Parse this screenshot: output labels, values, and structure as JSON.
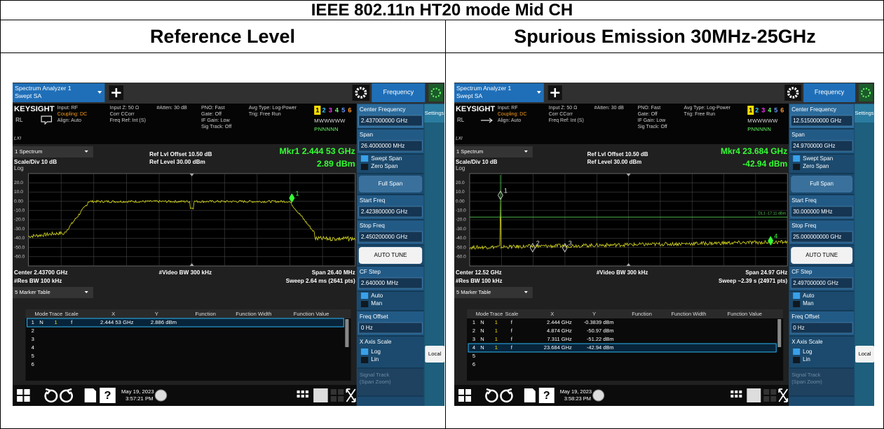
{
  "title": "IEEE 802.11n HT20 mode Mid CH",
  "panels": [
    {
      "heading": "Reference Level",
      "screen": {
        "tab": [
          "Spectrum Analyzer 1",
          "Swept SA"
        ],
        "menu": "Frequency",
        "brand": "KEYSIGHT",
        "rl": "RL",
        "lxi": "LXI",
        "info": [
          [
            "Input: RF",
            "Coupling: DC",
            "Align: Auto"
          ],
          [
            "Input Z: 50 Ω",
            "Corr CCorr",
            "Freq Ref: Int (S)"
          ],
          [
            "#Atten: 30 dB"
          ],
          [
            "PNO: Fast",
            "Gate: Off",
            "IF Gain: Low",
            "Sig Track: Off"
          ],
          [
            "Avg Type: Log-Power",
            "Trig: Free Run"
          ]
        ],
        "traces": [
          "1",
          "2",
          "3",
          "4",
          "5",
          "6"
        ],
        "trace_modes": "MWWWWW",
        "trace_dets": "PNNNNN",
        "window": "1 Spectrum",
        "scale": "Scale/Div 10 dB",
        "log": "Log",
        "ref_offset": "Ref Lvl Offset 10.50 dB",
        "ref_level": "Ref Level 30.00 dBm",
        "marker_freq": "Mkr1  2.444 53 GHz",
        "marker_level": "2.89 dBm",
        "y_labels": [
          "20.0",
          "10.0",
          "0.00",
          "-10.0",
          "-20.0",
          "-30.0",
          "-40.0",
          "-50.0",
          "-60.0"
        ],
        "markers": [
          "1"
        ],
        "center": "Center 2.43700 GHz",
        "res_bw": "#Res BW 100 kHz",
        "video_bw": "#Video BW 300 kHz",
        "span": "Span 26.40 MHz",
        "sweep": "Sweep 2.64 ms (2641 pts)",
        "table_title": "5 Marker Table",
        "columns": [
          "Mode",
          "Trace",
          "Scale",
          "X",
          "Y",
          "Function",
          "Function Width",
          "Function Value"
        ],
        "rows": [
          {
            "n": "1",
            "mode": "N",
            "trace": "1",
            "scale": "f",
            "x": "2.444 53 GHz",
            "y": "2.886 dBm",
            "selected": true
          },
          {
            "n": "2"
          },
          {
            "n": "3"
          },
          {
            "n": "4"
          },
          {
            "n": "5"
          },
          {
            "n": "6"
          }
        ],
        "side": [
          {
            "label": "Center Frequency",
            "value": "2.437000000 GHz"
          },
          {
            "label": "Span",
            "value": "26.4000000 MHz"
          },
          {
            "options": [
              "Swept Span",
              "Zero Span"
            ]
          },
          {
            "button": "Full Span"
          },
          {
            "label": "Start Freq",
            "value": "2.423800000 GHz"
          },
          {
            "label": "Stop Freq",
            "value": "2.450200000 GHz"
          },
          {
            "button": "AUTO TUNE"
          },
          {
            "label": "CF Step",
            "value": "2.640000 MHz"
          },
          {
            "options": [
              "Auto",
              "Man"
            ]
          },
          {
            "label": "Freq Offset",
            "value": "0 Hz"
          },
          {
            "label": "X Axis Scale",
            "options": [
              "Log",
              "Lin"
            ]
          },
          {
            "disabled": [
              "Signal Track",
              "(Span Zoom)"
            ]
          }
        ],
        "settings": "Settings",
        "local": "Local",
        "help": "?",
        "date": "May 19, 2023",
        "time": "3:57:21 PM"
      }
    },
    {
      "heading": "Spurious Emission 30MHz-25GHz",
      "screen": {
        "tab": [
          "Spectrum Analyzer 1",
          "Swept SA"
        ],
        "menu": "Frequency",
        "brand": "KEYSIGHT",
        "rl": "RL",
        "lxi": "LXI",
        "info": [
          [
            "Input: RF",
            "Coupling: DC",
            "Align: Auto"
          ],
          [
            "Input Z: 50 Ω",
            "Corr CCorr",
            "Freq Ref: Int (S)"
          ],
          [
            "#Atten: 30 dB"
          ],
          [
            "PNO: Fast",
            "Gate: Off",
            "IF Gain: Low",
            "Sig Track: Off"
          ],
          [
            "Avg Type: Log-Power",
            "Trig: Free Run"
          ]
        ],
        "traces": [
          "1",
          "2",
          "3",
          "4",
          "5",
          "6"
        ],
        "trace_modes": "MWWWWW",
        "trace_dets": "PNNNNN",
        "window": "1 Spectrum",
        "scale": "Scale/Div 10 dB",
        "log": "Log",
        "ref_offset": "Ref Lvl Offset 10.50 dB",
        "ref_level": "Ref Level 30.00 dBm",
        "marker_freq": "Mkr4  23.684 GHz",
        "marker_level": "-42.94 dBm",
        "y_labels": [
          "20.0",
          "10.0",
          "0.00",
          "-10.0",
          "-20.0",
          "-30.0",
          "-40.0",
          "-50.0",
          "-60.0"
        ],
        "markers": [
          "1",
          "2",
          "3",
          "4"
        ],
        "display_line": "DL1 -17.11 dBm",
        "center": "Center 12.52 GHz",
        "res_bw": "#Res BW 100 kHz",
        "video_bw": "#Video BW 300 kHz",
        "span": "Span 24.97 GHz",
        "sweep": "Sweep ~2.39 s (24971 pts)",
        "table_title": "5 Marker Table",
        "columns": [
          "Mode",
          "Trace",
          "Scale",
          "X",
          "Y",
          "Function",
          "Function Width",
          "Function Value"
        ],
        "rows": [
          {
            "n": "1",
            "mode": "N",
            "trace": "1",
            "scale": "f",
            "x": "2.444 GHz",
            "y": "-0.3839 dBm"
          },
          {
            "n": "2",
            "mode": "N",
            "trace": "1",
            "scale": "f",
            "x": "4.874 GHz",
            "y": "-50.97 dBm"
          },
          {
            "n": "3",
            "mode": "N",
            "trace": "1",
            "scale": "f",
            "x": "7.311 GHz",
            "y": "-51.22 dBm"
          },
          {
            "n": "4",
            "mode": "N",
            "trace": "1",
            "scale": "f",
            "x": "23.684 GHz",
            "y": "-42.94 dBm",
            "selected": true
          },
          {
            "n": "5"
          },
          {
            "n": "6"
          }
        ],
        "side": [
          {
            "label": "Center Frequency",
            "value": "12.515000000 GHz"
          },
          {
            "label": "Span",
            "value": "24.9700000 GHz"
          },
          {
            "options": [
              "Swept Span",
              "Zero Span"
            ]
          },
          {
            "button": "Full Span"
          },
          {
            "label": "Start Freq",
            "value": "30.000000 MHz"
          },
          {
            "label": "Stop Freq",
            "value": "25.000000000 GHz"
          },
          {
            "button": "AUTO TUNE"
          },
          {
            "label": "CF Step",
            "value": "2.497000000 GHz"
          },
          {
            "options": [
              "Auto",
              "Man"
            ]
          },
          {
            "label": "Freq Offset",
            "value": "0 Hz"
          },
          {
            "label": "X Axis Scale",
            "options": [
              "Log",
              "Lin"
            ]
          },
          {
            "disabled": [
              "Signal Track",
              "(Span Zoom)"
            ]
          }
        ],
        "settings": "Settings",
        "local": "Local",
        "help": "?",
        "date": "May 19, 2023",
        "time": "3:58:23 PM"
      }
    }
  ]
}
